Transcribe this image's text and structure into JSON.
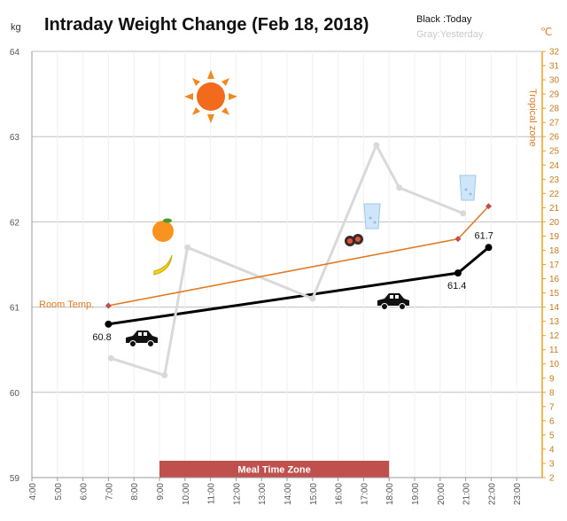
{
  "chart_data": {
    "type": "line",
    "title": "Intraday Weight Change (Feb 18, 2018)",
    "legend": {
      "today": "Black :Today",
      "yesterday": "Gray:Yesterday"
    },
    "y_left_label": "kg",
    "y_right_label": "℃",
    "x_ticks": [
      "4:00",
      "5:00",
      "6:00",
      "7:00",
      "8:00",
      "9:00",
      "10:00",
      "11:00",
      "12:00",
      "13:00",
      "14:00",
      "15:00",
      "16:00",
      "17:00",
      "18:00",
      "19:00",
      "20:00",
      "21:00",
      "22:00",
      "23:00"
    ],
    "y_left_ticks": [
      59,
      60,
      61,
      62,
      63,
      64
    ],
    "y_right_ticks": [
      2,
      3,
      4,
      5,
      6,
      7,
      8,
      9,
      10,
      11,
      12,
      13,
      14,
      15,
      16,
      17,
      18,
      19,
      20,
      21,
      22,
      23,
      24,
      25,
      26,
      27,
      28,
      29,
      30,
      31,
      32
    ],
    "ylim_left": [
      59,
      64
    ],
    "ylim_right": [
      2,
      32
    ],
    "xlim": [
      4,
      24
    ],
    "band": {
      "label": "Meal Time Zone",
      "start": 9,
      "end": 18
    },
    "series": [
      {
        "name": "Today",
        "color": "#000000",
        "axis": "left",
        "points": [
          {
            "x": 7.0,
            "y": 60.8
          },
          {
            "x": 20.7,
            "y": 61.4
          },
          {
            "x": 21.9,
            "y": 61.7
          }
        ],
        "labels": [
          "60.8",
          "61.4",
          "61.7"
        ]
      },
      {
        "name": "Yesterday",
        "color": "#d9d9d9",
        "axis": "left",
        "points": [
          {
            "x": 7.1,
            "y": 60.4
          },
          {
            "x": 9.2,
            "y": 60.2
          },
          {
            "x": 10.1,
            "y": 61.7
          },
          {
            "x": 15.0,
            "y": 61.1
          },
          {
            "x": 17.5,
            "y": 62.9
          },
          {
            "x": 18.4,
            "y": 62.4
          },
          {
            "x": 20.9,
            "y": 62.1
          }
        ]
      },
      {
        "name": "Room Temp.",
        "color": "#e07b24",
        "axis": "right",
        "points": [
          {
            "x": 7.0,
            "y": 14.1
          },
          {
            "x": 20.7,
            "y": 18.8
          },
          {
            "x": 21.9,
            "y": 21.1
          }
        ]
      }
    ],
    "annotations": {
      "room_temp": "Room Temp.",
      "tropical": "Tropical zone"
    }
  }
}
